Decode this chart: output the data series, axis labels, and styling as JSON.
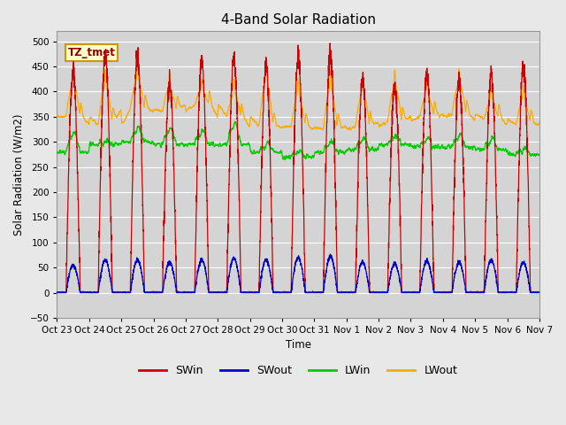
{
  "title": "4-Band Solar Radiation",
  "ylabel": "Solar Radiation (W/m2)",
  "xlabel": "Time",
  "annotation_label": "TZ_tmet",
  "ylim": [
    -50,
    520
  ],
  "yticks": [
    -50,
    0,
    50,
    100,
    150,
    200,
    250,
    300,
    350,
    400,
    450,
    500
  ],
  "x_labels": [
    "Oct 23",
    "Oct 24",
    "Oct 25",
    "Oct 26",
    "Oct 27",
    "Oct 28",
    "Oct 29",
    "Oct 30",
    "Oct 31",
    "Nov 1",
    "Nov 2",
    "Nov 3",
    "Nov 4",
    "Nov 5",
    "Nov 6",
    "Nov 7"
  ],
  "background_color": "#e8e8e8",
  "plot_bg_color": "#d4d4d4",
  "grid_color": "#ffffff",
  "colors": {
    "SWin": "#cc0000",
    "SWout": "#0000cc",
    "LWin": "#00cc00",
    "LWout": "#ffaa00"
  },
  "num_days": 15,
  "n_points": 3600,
  "peaks_SWin": [
    440,
    470,
    470,
    420,
    460,
    465,
    450,
    470,
    475,
    425,
    410,
    440,
    420,
    435,
    450
  ],
  "peaks_SWout": [
    55,
    65,
    65,
    60,
    65,
    68,
    65,
    70,
    72,
    60,
    58,
    63,
    60,
    65,
    60
  ],
  "LWout_night": [
    350,
    335,
    365,
    360,
    375,
    350,
    330,
    330,
    325,
    330,
    340,
    350,
    355,
    345,
    335
  ],
  "LWout_peaks": [
    475,
    470,
    485,
    465,
    460,
    455,
    480,
    455,
    465,
    460,
    470,
    455,
    475,
    445,
    445
  ],
  "LWin_base": [
    280,
    295,
    300,
    295,
    295,
    295,
    280,
    270,
    280,
    285,
    295,
    290,
    290,
    285,
    275
  ],
  "LWin_peaks": [
    315,
    300,
    325,
    325,
    320,
    335,
    295,
    280,
    300,
    305,
    310,
    305,
    310,
    305,
    285
  ]
}
